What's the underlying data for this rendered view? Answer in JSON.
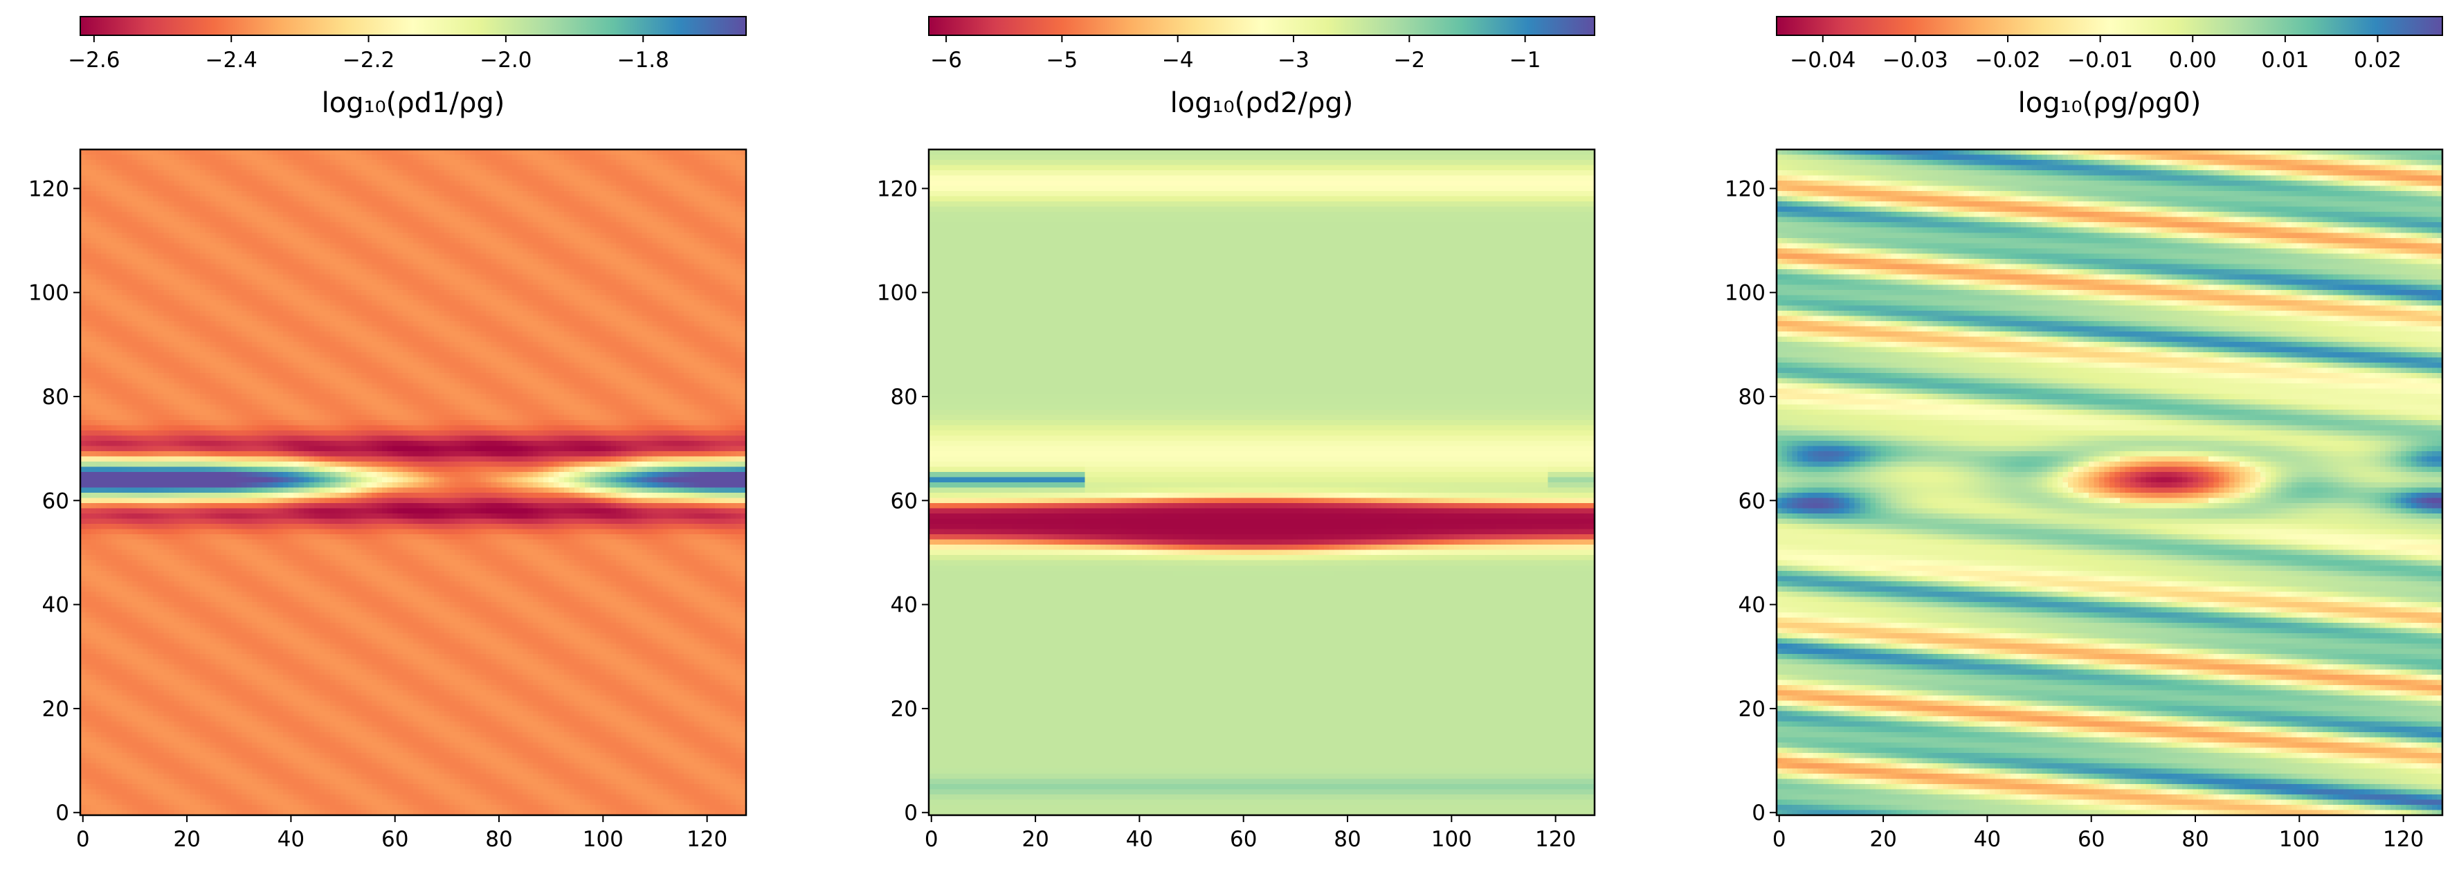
{
  "chart_data": [
    {
      "type": "heatmap",
      "xlim": [
        0,
        127
      ],
      "ylim": [
        0,
        127
      ],
      "x_ticks": [
        0,
        20,
        40,
        60,
        80,
        100,
        120
      ],
      "y_ticks": [
        0,
        20,
        40,
        60,
        80,
        100,
        120
      ],
      "x_tick_labels": [
        "0",
        "20",
        "40",
        "60",
        "80",
        "100",
        "120"
      ],
      "y_tick_labels": [
        "0",
        "20",
        "40",
        "60",
        "80",
        "100",
        "120"
      ],
      "colormap": "Spectral",
      "colorbar": {
        "position": "top",
        "range": [
          -2.62,
          -1.65
        ],
        "ticks": [
          -2.6,
          -2.4,
          -2.2,
          -2.0,
          -1.8
        ],
        "tick_labels": [
          "−2.6",
          "−2.4",
          "−2.2",
          "−2.0",
          "−1.8"
        ],
        "label_text": "log₁₀(ρd1/ρg)"
      },
      "field": {
        "background": -2.38,
        "stripe_amplitude": 0.015,
        "stripe_tilt": -0.06,
        "bands": [
          {
            "y": 58,
            "value": -2.62,
            "width": 2.2
          },
          {
            "y": 70,
            "value": -2.62,
            "width": 2.2
          }
        ],
        "core": {
          "y": 64,
          "value": -1.68,
          "halfwidth": 2.6,
          "pinch_x": 74,
          "pinch_width": 26
        }
      }
    },
    {
      "type": "heatmap",
      "xlim": [
        0,
        127
      ],
      "ylim": [
        0,
        127
      ],
      "x_ticks": [
        0,
        20,
        40,
        60,
        80,
        100,
        120
      ],
      "y_ticks": [
        0,
        20,
        40,
        60,
        80,
        100,
        120
      ],
      "x_tick_labels": [
        "0",
        "20",
        "40",
        "60",
        "80",
        "100",
        "120"
      ],
      "y_tick_labels": [
        "0",
        "20",
        "40",
        "60",
        "80",
        "100",
        "120"
      ],
      "colormap": "Spectral",
      "colorbar": {
        "position": "top",
        "range": [
          -6.15,
          -0.4
        ],
        "ticks": [
          -6,
          -5,
          -4,
          -3,
          -2,
          -1
        ],
        "tick_labels": [
          "−6",
          "−5",
          "−4",
          "−3",
          "−2",
          "−1"
        ],
        "label_text": "log₁₀(ρd2/ρg)"
      },
      "field": {
        "background": -2.35,
        "bands": [
          {
            "y": 5,
            "value": -1.9,
            "width": 1.2
          },
          {
            "y": 52,
            "value": -3.6,
            "width": 1.6
          },
          {
            "y": 69,
            "value": -3.3,
            "width": 3.5
          },
          {
            "y": 121,
            "value": -3.4,
            "width": 2.2
          }
        ],
        "sheet": {
          "center": 57,
          "value": -6.1,
          "halfwidth_edge": 4.5,
          "halfwidth_peak": 6.5,
          "peak_x": 62,
          "peak_width": 35
        },
        "stripe": {
          "y": 64,
          "value": -1.0,
          "xmax": 30
        }
      }
    },
    {
      "type": "heatmap",
      "xlim": [
        0,
        127
      ],
      "ylim": [
        0,
        127
      ],
      "x_ticks": [
        0,
        20,
        40,
        60,
        80,
        100,
        120
      ],
      "y_ticks": [
        0,
        20,
        40,
        60,
        80,
        100,
        120
      ],
      "x_tick_labels": [
        "0",
        "20",
        "40",
        "60",
        "80",
        "100",
        "120"
      ],
      "y_tick_labels": [
        "0",
        "20",
        "40",
        "60",
        "80",
        "100",
        "120"
      ],
      "colormap": "Spectral",
      "colorbar": {
        "position": "top",
        "range": [
          -0.045,
          0.027
        ],
        "ticks": [
          -0.04,
          -0.03,
          -0.02,
          -0.01,
          0.0,
          0.01,
          0.02
        ],
        "tick_labels": [
          "−0.04",
          "−0.03",
          "−0.02",
          "−0.01",
          "0.00",
          "0.01",
          "0.02"
        ],
        "label_text": "log₁₀(ρg/ρg0)"
      },
      "field": {
        "waves": [
          {
            "amplitude": 0.017,
            "wavelength": 14.0,
            "tilt": -0.11,
            "phase": 0.4
          },
          {
            "amplitude": 0.008,
            "wavelength": 6.5,
            "tilt": -0.09,
            "phase": 1.7
          }
        ],
        "wave_damping": {
          "center": 64,
          "width": 14
        },
        "core": {
          "x": 74,
          "y": 64,
          "value": -0.043,
          "rx": 19,
          "ry": 4.5
        },
        "side_lobes": [
          {
            "x": 8,
            "y": 60,
            "value": 0.024,
            "rx": 12,
            "ry": 3
          },
          {
            "x": 8,
            "y": 68,
            "value": 0.024,
            "rx": 12,
            "ry": 3
          },
          {
            "x": 127,
            "y": 60,
            "value": 0.022,
            "rx": 10,
            "ry": 3
          },
          {
            "x": 127,
            "y": 68,
            "value": 0.022,
            "rx": 10,
            "ry": 3
          }
        ]
      }
    }
  ]
}
